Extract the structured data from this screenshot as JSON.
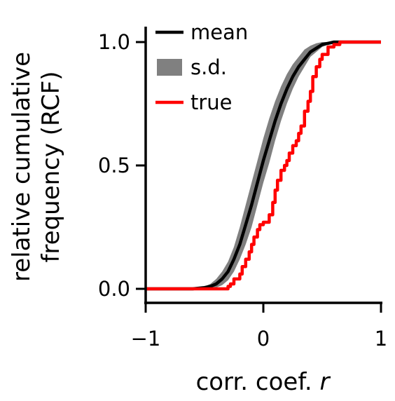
{
  "chart_data": {
    "type": "line",
    "xlabel_text": "corr. coef. ",
    "xlabel_var": "r",
    "ylabel_lines": [
      "relative cumulative",
      "frequency (RCF)"
    ],
    "xlim": [
      -1,
      1
    ],
    "ylim": [
      0,
      1
    ],
    "xticks": [
      -1,
      0,
      1
    ],
    "xtick_labels": [
      "−1",
      "0",
      "1"
    ],
    "yticks": [
      0,
      0.5,
      1
    ],
    "ytick_labels": [
      "0.0",
      "0.5",
      "1.0"
    ],
    "legend_position": "top-left",
    "legend": [
      {
        "label": "mean",
        "style": "line",
        "color": "#000000"
      },
      {
        "label": "s.d.",
        "style": "patch",
        "color": "#808080"
      },
      {
        "label": "true",
        "style": "line",
        "color": "#ff0000"
      }
    ],
    "series": [
      {
        "name": "mean",
        "color": "#000000",
        "x": [
          -1.0,
          -0.6,
          -0.5,
          -0.45,
          -0.4,
          -0.35,
          -0.3,
          -0.25,
          -0.2,
          -0.15,
          -0.1,
          -0.05,
          0.0,
          0.05,
          0.1,
          0.15,
          0.2,
          0.25,
          0.3,
          0.35,
          0.4,
          0.45,
          0.5,
          0.55,
          0.6,
          0.65,
          1.0
        ],
        "y": [
          0.0,
          0.0,
          0.005,
          0.01,
          0.02,
          0.04,
          0.07,
          0.12,
          0.18,
          0.26,
          0.34,
          0.43,
          0.52,
          0.6,
          0.68,
          0.75,
          0.81,
          0.86,
          0.9,
          0.93,
          0.96,
          0.975,
          0.99,
          0.995,
          1.0,
          1.0,
          1.0
        ]
      },
      {
        "name": "s.d.",
        "color": "#808080",
        "x": [
          -1.0,
          -0.55,
          -0.5,
          -0.45,
          -0.4,
          -0.35,
          -0.3,
          -0.25,
          -0.2,
          -0.15,
          -0.1,
          -0.05,
          0.0,
          0.05,
          0.1,
          0.15,
          0.2,
          0.25,
          0.3,
          0.35,
          0.4,
          0.45,
          0.5,
          0.55,
          0.6,
          0.7,
          1.0
        ],
        "upper": [
          0.0,
          0.005,
          0.01,
          0.02,
          0.04,
          0.07,
          0.11,
          0.17,
          0.25,
          0.34,
          0.43,
          0.52,
          0.61,
          0.69,
          0.76,
          0.82,
          0.87,
          0.91,
          0.94,
          0.97,
          0.985,
          0.995,
          1.0,
          1.0,
          1.0,
          1.0,
          1.0
        ],
        "lower": [
          0.0,
          0.0,
          0.0,
          0.002,
          0.005,
          0.015,
          0.035,
          0.07,
          0.12,
          0.18,
          0.25,
          0.34,
          0.43,
          0.51,
          0.6,
          0.68,
          0.75,
          0.81,
          0.86,
          0.9,
          0.94,
          0.96,
          0.98,
          0.99,
          1.0,
          1.0,
          1.0
        ]
      },
      {
        "name": "true",
        "color": "#ff0000",
        "x": [
          -1.0,
          -0.35,
          -0.32,
          -0.3,
          -0.28,
          -0.25,
          -0.2,
          -0.18,
          -0.15,
          -0.12,
          -0.1,
          -0.08,
          -0.05,
          -0.03,
          0.0,
          0.05,
          0.08,
          0.1,
          0.12,
          0.15,
          0.18,
          0.2,
          0.22,
          0.25,
          0.28,
          0.3,
          0.32,
          0.35,
          0.38,
          0.4,
          0.42,
          0.45,
          0.48,
          0.5,
          0.55,
          0.6,
          0.65,
          0.7,
          1.0
        ],
        "y": [
          0.0,
          0.0,
          0.0,
          0.01,
          0.02,
          0.04,
          0.06,
          0.09,
          0.12,
          0.15,
          0.18,
          0.21,
          0.24,
          0.26,
          0.27,
          0.3,
          0.35,
          0.4,
          0.44,
          0.48,
          0.5,
          0.52,
          0.55,
          0.58,
          0.6,
          0.63,
          0.66,
          0.72,
          0.76,
          0.8,
          0.86,
          0.9,
          0.93,
          0.95,
          0.98,
          0.99,
          1.0,
          1.0,
          1.0
        ]
      }
    ]
  }
}
